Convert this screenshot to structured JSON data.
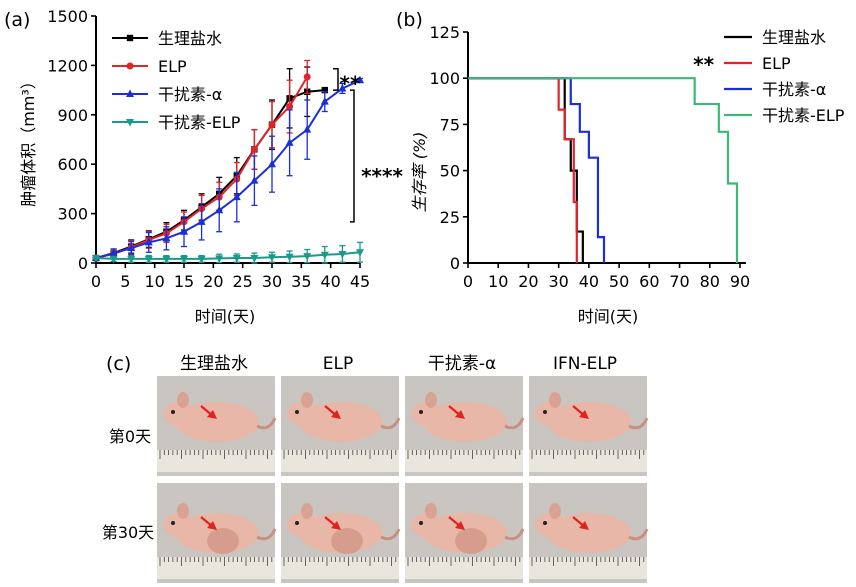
{
  "panels": {
    "a": {
      "label": "(a)"
    },
    "b": {
      "label": "(b)"
    },
    "c": {
      "label": "(c)",
      "columns": [
        "生理盐水",
        "ELP",
        "干扰素-α",
        "IFN-ELP"
      ],
      "rows": [
        "第0天",
        "第30天"
      ]
    }
  },
  "colors": {
    "saline": "#000000",
    "elp": "#e0242a",
    "ifn": "#1a2fd6",
    "ifn_elp": "#1a9a8a",
    "km_ifn_elp": "#3cb878",
    "photo_bg": "#c9c6c1",
    "mouse": "#e8b7a8",
    "arrow": "#e0241c"
  },
  "chart_data": [
    {
      "id": "a",
      "type": "line",
      "ylabel": "肿瘤体积（mm³）",
      "xlabel": "时间(天)",
      "xlim": [
        0,
        45
      ],
      "ylim": [
        0,
        1500
      ],
      "xticks": [
        0,
        5,
        10,
        15,
        20,
        25,
        30,
        35,
        40,
        45
      ],
      "yticks": [
        0,
        300,
        600,
        900,
        1200,
        1500
      ],
      "legend_position": "top-left",
      "series": [
        {
          "name": "生理盐水",
          "color": "#000000",
          "marker": "square",
          "x": [
            0,
            3,
            6,
            9,
            12,
            15,
            18,
            21,
            24,
            27,
            30,
            33,
            36,
            39
          ],
          "y": [
            30,
            60,
            100,
            145,
            190,
            260,
            340,
            420,
            530,
            690,
            840,
            1000,
            1040,
            1050
          ],
          "err": [
            10,
            25,
            40,
            50,
            55,
            60,
            80,
            100,
            110,
            120,
            150,
            180,
            150,
            0
          ]
        },
        {
          "name": "ELP",
          "color": "#e0242a",
          "marker": "circle",
          "x": [
            0,
            3,
            6,
            9,
            12,
            15,
            18,
            21,
            24,
            27,
            30,
            33,
            36
          ],
          "y": [
            30,
            55,
            95,
            140,
            180,
            250,
            330,
            400,
            510,
            690,
            840,
            950,
            1130
          ],
          "err": [
            10,
            20,
            40,
            50,
            55,
            60,
            80,
            90,
            100,
            120,
            140,
            160,
            100
          ]
        },
        {
          "name": "干扰素-α",
          "color": "#1a2fd6",
          "marker": "triangle-up",
          "x": [
            0,
            3,
            6,
            9,
            12,
            15,
            18,
            21,
            24,
            27,
            30,
            33,
            36,
            39,
            42,
            45
          ],
          "y": [
            30,
            60,
            90,
            125,
            150,
            190,
            250,
            320,
            400,
            500,
            600,
            730,
            810,
            980,
            1060,
            1110
          ],
          "err": [
            10,
            25,
            40,
            60,
            70,
            90,
            110,
            130,
            150,
            150,
            170,
            200,
            180,
            60,
            30,
            10
          ]
        },
        {
          "name": "干扰素-ELP",
          "color": "#1a9a8a",
          "marker": "triangle-down",
          "x": [
            0,
            3,
            6,
            9,
            12,
            15,
            18,
            21,
            24,
            27,
            30,
            33,
            36,
            39,
            42,
            45
          ],
          "y": [
            30,
            25,
            25,
            25,
            25,
            25,
            25,
            28,
            30,
            30,
            35,
            38,
            42,
            50,
            55,
            65
          ],
          "err": [
            5,
            15,
            20,
            20,
            20,
            20,
            20,
            25,
            25,
            30,
            30,
            35,
            40,
            50,
            50,
            60
          ]
        }
      ],
      "annotations": [
        {
          "text": "**",
          "between": [
            "干扰素-α",
            "生理盐水"
          ],
          "y_range": [
            1050,
            1180
          ]
        },
        {
          "text": "****",
          "between": [
            "干扰素-ELP",
            "干扰素-α"
          ],
          "y_range": [
            250,
            1050
          ]
        }
      ]
    },
    {
      "id": "b",
      "type": "line",
      "subtype": "kaplan-meier",
      "ylabel": "生存率 (%)",
      "xlabel": "时间(天)",
      "xlim": [
        0,
        90
      ],
      "ylim": [
        0,
        125
      ],
      "xticks": [
        0,
        10,
        20,
        30,
        40,
        50,
        60,
        70,
        80,
        90
      ],
      "yticks": [
        0,
        25,
        50,
        75,
        100,
        125
      ],
      "legend_position": "top-right",
      "series": [
        {
          "name": "生理盐水",
          "color": "#000000",
          "steps": [
            [
              0,
              100
            ],
            [
              32,
              100
            ],
            [
              32,
              67
            ],
            [
              34,
              67
            ],
            [
              34,
              50
            ],
            [
              36,
              50
            ],
            [
              36,
              17
            ],
            [
              38,
              17
            ],
            [
              38,
              0
            ]
          ]
        },
        {
          "name": "ELP",
          "color": "#e0242a",
          "steps": [
            [
              0,
              100
            ],
            [
              30,
              100
            ],
            [
              30,
              83
            ],
            [
              32,
              83
            ],
            [
              32,
              67
            ],
            [
              35,
              67
            ],
            [
              35,
              33
            ],
            [
              36,
              33
            ],
            [
              36,
              0
            ]
          ]
        },
        {
          "name": "干扰素-α",
          "color": "#1a2fd6",
          "steps": [
            [
              0,
              100
            ],
            [
              34,
              100
            ],
            [
              34,
              86
            ],
            [
              37,
              86
            ],
            [
              37,
              71
            ],
            [
              40,
              71
            ],
            [
              40,
              57
            ],
            [
              43,
              57
            ],
            [
              43,
              14
            ],
            [
              45,
              14
            ],
            [
              45,
              0
            ]
          ]
        },
        {
          "name": "干扰素-ELP",
          "color": "#3cb878",
          "steps": [
            [
              0,
              100
            ],
            [
              75,
              100
            ],
            [
              75,
              86
            ],
            [
              83,
              86
            ],
            [
              83,
              71
            ],
            [
              86,
              71
            ],
            [
              86,
              43
            ],
            [
              89,
              43
            ],
            [
              89,
              0
            ]
          ]
        }
      ],
      "annotations": [
        {
          "text": "**",
          "x": 72,
          "y": 110
        }
      ]
    }
  ]
}
